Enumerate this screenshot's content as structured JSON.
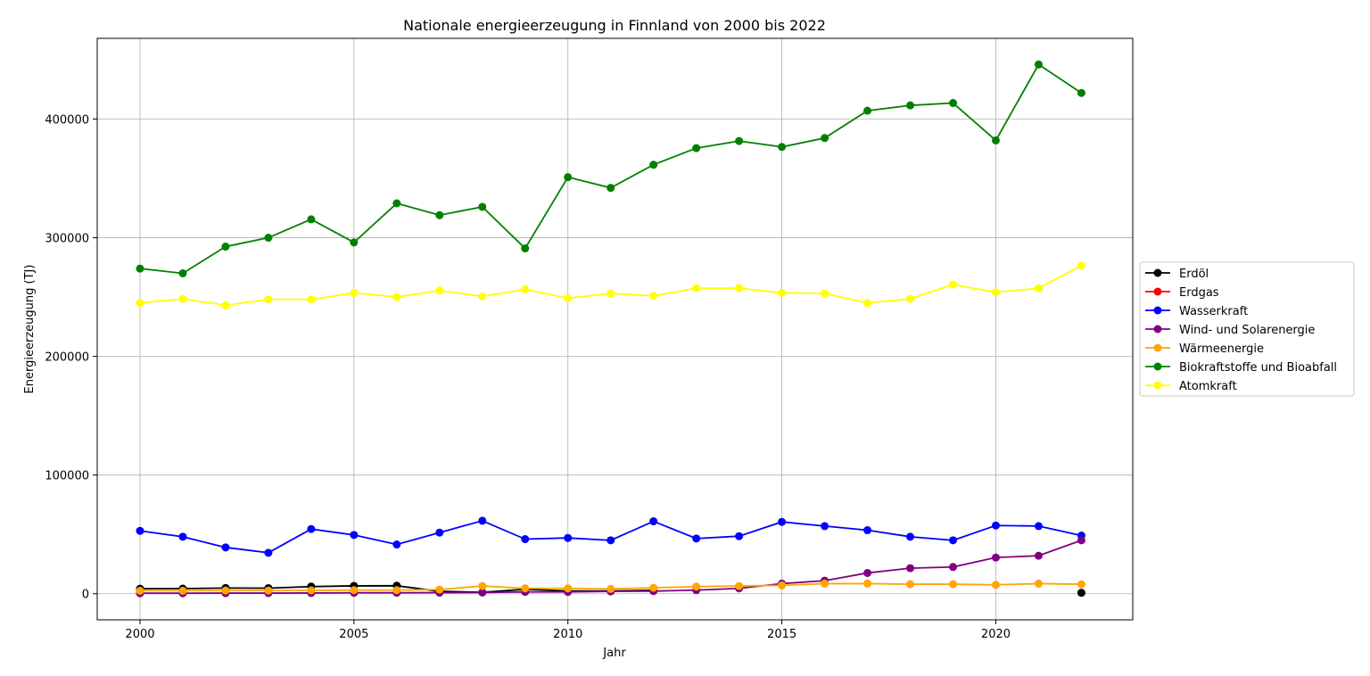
{
  "chart_data": {
    "type": "line",
    "title": "Nationale energieerzeugung in Finnland von 2000 bis 2022",
    "xlabel": "Jahr",
    "ylabel": "Energieerzeugung (TJ)",
    "xlim": [
      1999,
      2023.2
    ],
    "ylim": [
      -22000,
      468000
    ],
    "x_ticks": [
      2000,
      2005,
      2010,
      2015,
      2020
    ],
    "y_ticks": [
      0,
      100000,
      200000,
      300000,
      400000
    ],
    "grid": true,
    "legend_position": "center-right",
    "x": [
      2000,
      2001,
      2002,
      2003,
      2004,
      2005,
      2006,
      2007,
      2008,
      2009,
      2010,
      2011,
      2012,
      2013,
      2014,
      2015,
      2016,
      2017,
      2018,
      2019,
      2020,
      2021,
      2022
    ],
    "series": [
      {
        "name": "Erdöl",
        "color": "#000000",
        "values": [
          4200,
          4300,
          4800,
          4700,
          6000,
          6600,
          6700,
          2000,
          1200,
          3700,
          2300,
          2300,
          2900,
          null,
          null,
          null,
          null,
          null,
          null,
          null,
          null,
          null,
          800
        ]
      },
      {
        "name": "Erdgas",
        "color": "#ff0000",
        "values": [
          null,
          null,
          null,
          null,
          null,
          null,
          null,
          null,
          null,
          null,
          null,
          null,
          null,
          null,
          null,
          null,
          null,
          null,
          null,
          null,
          null,
          null,
          null
        ]
      },
      {
        "name": "Wasserkraft",
        "color": "#0000ff",
        "values": [
          53000,
          48000,
          39000,
          34500,
          54500,
          49500,
          41500,
          51500,
          61500,
          46000,
          47000,
          45000,
          61000,
          46500,
          48500,
          60500,
          57000,
          53500,
          48000,
          45000,
          57500,
          57000,
          49000
        ]
      },
      {
        "name": "Wind- und Solarenergie",
        "color": "#800080",
        "values": [
          400,
          400,
          500,
          500,
          600,
          800,
          800,
          900,
          1000,
          1500,
          1500,
          2000,
          2200,
          3000,
          4500,
          8500,
          11000,
          17500,
          21500,
          22500,
          30500,
          32000,
          45000
        ]
      },
      {
        "name": "Wärmeenergie",
        "color": "#ffa500",
        "values": [
          2500,
          2500,
          2700,
          2700,
          2800,
          3000,
          3000,
          3500,
          6500,
          4500,
          4500,
          4000,
          5000,
          6000,
          6500,
          7000,
          8500,
          8500,
          8000,
          8000,
          7500,
          8500,
          8000
        ]
      },
      {
        "name": "Biokraftstoffe und Bioabfall",
        "color": "#008000",
        "values": [
          274000,
          270000,
          292500,
          300000,
          315500,
          296000,
          329000,
          319000,
          326000,
          291000,
          351000,
          342000,
          361500,
          375500,
          381500,
          376500,
          384000,
          407000,
          411500,
          413500,
          382000,
          446000,
          422000
        ]
      },
      {
        "name": "Atomkraft",
        "color": "#ffff00",
        "values": [
          245000,
          248500,
          243000,
          248000,
          248000,
          253500,
          250000,
          255500,
          250500,
          256500,
          249000,
          253000,
          251000,
          257500,
          257500,
          253500,
          253000,
          245000,
          248500,
          260500,
          254000,
          257500,
          276500
        ]
      }
    ]
  }
}
